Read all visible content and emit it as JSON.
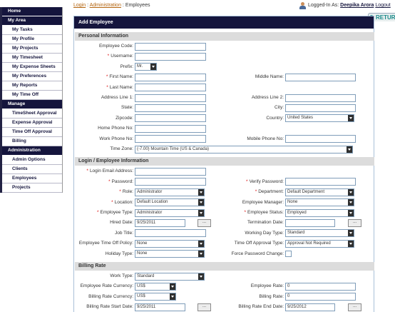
{
  "sidebar": [
    {
      "title": "Home",
      "items": []
    },
    {
      "title": "My Area",
      "items": [
        "My Tasks",
        "My Profile",
        "My Projects",
        "My Timesheet",
        "My Expense Sheets",
        "My Preferences",
        "My Reports",
        "My Time Off"
      ]
    },
    {
      "title": "Manage",
      "items": [
        "TimeSheet Approval",
        "Expense Approval",
        "Time Off Approval",
        "Billing"
      ]
    },
    {
      "title": "Administration",
      "items": [
        "Admin Options",
        "Clients",
        "Employees",
        "Projects"
      ]
    }
  ],
  "breadcrumb": {
    "separator": ":",
    "items": [
      {
        "text": "Login",
        "link": true
      },
      {
        "text": "Administration",
        "link": true
      },
      {
        "text": "Employees",
        "link": false
      }
    ]
  },
  "user": {
    "prefix": "Logged-In As:",
    "name": "Deepika Arora",
    "logout": "Logout"
  },
  "return_button": "RETURN",
  "form": {
    "title": "Add Employee",
    "sections": [
      {
        "title": "Personal Information",
        "rows": [
          [
            {
              "label": "Employee Code:",
              "control": "text"
            },
            null
          ],
          [
            {
              "required": "*",
              "label": "Username:",
              "control": "text"
            },
            null
          ],
          [
            {
              "label": "Prefix:",
              "control": "select-small",
              "value": "Mr."
            },
            null
          ],
          [
            {
              "required": "*",
              "label": "First Name:",
              "control": "text"
            },
            {
              "label": "Middle Name:",
              "control": "text"
            }
          ],
          [
            {
              "required": "*",
              "label": "Last Name:",
              "control": "text"
            },
            null
          ],
          [
            {
              "label": "Address Line 1:",
              "control": "text"
            },
            {
              "label": "Address Line 2:",
              "control": "text"
            }
          ],
          [
            {
              "label": "State:",
              "control": "text"
            },
            {
              "label": "City:",
              "control": "text"
            }
          ],
          [
            {
              "label": "Zipcode:",
              "control": "text"
            },
            {
              "label": "Country:",
              "control": "select",
              "value": "United States"
            }
          ],
          [
            {
              "label": "Home Phone No:",
              "control": "text"
            },
            null
          ],
          [
            {
              "label": "Work Phone No:",
              "control": "text"
            },
            {
              "label": "Mobile Phone No:",
              "control": "text"
            }
          ],
          [
            {
              "label": "Time Zone:",
              "control": "select-wide",
              "value": "(-7.00) Mountain Time (US & Canada)"
            },
            null
          ]
        ]
      },
      {
        "title": "Login / Employee Information",
        "rows": [
          [
            {
              "required": "*",
              "label": "Login Email Address:",
              "control": "text"
            },
            null
          ],
          [
            {
              "required": "*",
              "label": "Password:",
              "control": "text"
            },
            {
              "required": "*",
              "label": "Verify Password:",
              "control": "text"
            }
          ],
          [
            {
              "required": "*",
              "label": "Role:",
              "control": "select",
              "value": "Administrator"
            },
            {
              "required": "*",
              "label": "Department:",
              "control": "select",
              "value": "Default Department"
            }
          ],
          [
            {
              "required": "*",
              "label": "Location:",
              "control": "select",
              "value": "Default Location"
            },
            {
              "label": "Employee Manager:",
              "control": "select",
              "value": "None"
            }
          ],
          [
            {
              "required": "*",
              "label": "Employee Type:",
              "control": "select",
              "value": "Administrator"
            },
            {
              "required": "*",
              "label": "Employee Status:",
              "control": "select",
              "value": "Employed"
            }
          ],
          [
            {
              "label": "Hired Date:",
              "control": "date",
              "value": "9/25/2011",
              "button": "..."
            },
            {
              "label": "Termination Date:",
              "control": "date",
              "button": "..."
            }
          ],
          [
            {
              "label": "Job Title:",
              "control": "text"
            },
            {
              "label": "Working Day Type:",
              "control": "select",
              "value": "Standard"
            }
          ],
          [
            {
              "label": "Employee Time Off Policy:",
              "control": "select",
              "value": "None"
            },
            {
              "label": "Time Off Approval Type:",
              "control": "select",
              "value": "Approval Not Required"
            }
          ],
          [
            {
              "label": "Holiday Type:",
              "control": "select",
              "value": "None"
            },
            {
              "label": "Force Password Change:",
              "control": "checkbox"
            }
          ]
        ]
      },
      {
        "title": "Billing Rate",
        "rows": [
          [
            {
              "label": "Work Type:",
              "control": "select",
              "value": "Standard"
            },
            null
          ],
          [
            {
              "label": "Employee Rate Currency:",
              "control": "select-medium",
              "value": "US$"
            },
            {
              "label": "Employee Rate:",
              "control": "text",
              "value": "0"
            }
          ],
          [
            {
              "label": "Billing Rate Currency:",
              "control": "select-medium",
              "value": "US$"
            },
            {
              "label": "Billing Rate:",
              "control": "text",
              "value": "0"
            }
          ],
          [
            {
              "label": "Billing Rate Start Date:",
              "control": "date",
              "value": "9/25/2011",
              "button": "..."
            },
            {
              "label": "Billing Rate End Date:",
              "control": "date",
              "value": "9/25/2012",
              "button": "..."
            }
          ]
        ]
      }
    ]
  }
}
